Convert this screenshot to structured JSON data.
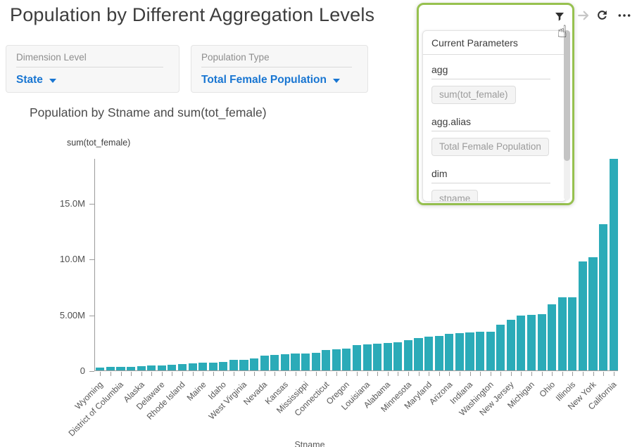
{
  "page": {
    "title": "Population by Different Aggregation Levels"
  },
  "filters": [
    {
      "label": "Dimension Level",
      "value": "State",
      "icon": "caret-down-icon"
    },
    {
      "label": "Population Type",
      "value": "Total Female Population",
      "icon": "caret-down-icon"
    }
  ],
  "toolbar": {
    "icons": [
      "funnel-icon",
      "arrow-right-icon",
      "refresh-icon",
      "ellipsis-icon"
    ]
  },
  "cursor": {
    "icon": "hand-pointer-icon",
    "glyph": "☝"
  },
  "parameters_popup": {
    "title": "Current Parameters",
    "fields": [
      {
        "name": "agg",
        "value": "sum(tot_female)"
      },
      {
        "name": "agg.alias",
        "value": "Total Female Population"
      },
      {
        "name": "dim",
        "value": "stname"
      }
    ]
  },
  "chart": {
    "title": "Population by Stname and sum(tot_female)",
    "y_axis_label": "sum(tot_female)",
    "x_axis_label": "Stname"
  },
  "chart_data": {
    "type": "bar",
    "title": "Population by Stname and sum(tot_female)",
    "xlabel": "Stname",
    "ylabel": "sum(tot_female)",
    "ylim": [
      0,
      19000000
    ],
    "grid": false,
    "legend": "none",
    "bar_color": "#2babb8",
    "sort": "ascending",
    "x_label_rotation": -45,
    "x_labels_every_other_bar": true,
    "y_ticks": [
      {
        "value": 0,
        "label": "0"
      },
      {
        "value": 5000000,
        "label": "5.00M"
      },
      {
        "value": 10000000,
        "label": "10.0M"
      },
      {
        "value": 15000000,
        "label": "15.0M"
      }
    ],
    "bars": [
      {
        "label": "Wyoming",
        "value": 280000
      },
      {
        "label": "",
        "value": 310000
      },
      {
        "label": "District of Columbia",
        "value": 320000
      },
      {
        "label": "",
        "value": 335000
      },
      {
        "label": "Alaska",
        "value": 350000
      },
      {
        "label": "",
        "value": 410000
      },
      {
        "label": "Delaware",
        "value": 460000
      },
      {
        "label": "",
        "value": 500000
      },
      {
        "label": "Rhode Island",
        "value": 550000
      },
      {
        "label": "",
        "value": 660000
      },
      {
        "label": "Maine",
        "value": 680000
      },
      {
        "label": "",
        "value": 690000
      },
      {
        "label": "Idaho",
        "value": 780000
      },
      {
        "label": "",
        "value": 920000
      },
      {
        "label": "West Virginia",
        "value": 950000
      },
      {
        "label": "",
        "value": 1050000
      },
      {
        "label": "Nevada",
        "value": 1330000
      },
      {
        "label": "",
        "value": 1360000
      },
      {
        "label": "Kansas",
        "value": 1430000
      },
      {
        "label": "",
        "value": 1490000
      },
      {
        "label": "Mississippi",
        "value": 1530000
      },
      {
        "label": "",
        "value": 1550000
      },
      {
        "label": "Connecticut",
        "value": 1840000
      },
      {
        "label": "",
        "value": 1900000
      },
      {
        "label": "Oregon",
        "value": 1950000
      },
      {
        "label": "",
        "value": 2250000
      },
      {
        "label": "Louisiana",
        "value": 2350000
      },
      {
        "label": "",
        "value": 2410000
      },
      {
        "label": "Alabama",
        "value": 2480000
      },
      {
        "label": "",
        "value": 2540000
      },
      {
        "label": "Minnesota",
        "value": 2700000
      },
      {
        "label": "",
        "value": 2900000
      },
      {
        "label": "Maryland",
        "value": 3000000
      },
      {
        "label": "",
        "value": 3100000
      },
      {
        "label": "Arizona",
        "value": 3280000
      },
      {
        "label": "",
        "value": 3330000
      },
      {
        "label": "Indiana",
        "value": 3370000
      },
      {
        "label": "",
        "value": 3440000
      },
      {
        "label": "Washington",
        "value": 3460000
      },
      {
        "label": "",
        "value": 4100000
      },
      {
        "label": "New Jersey",
        "value": 4520000
      },
      {
        "label": "",
        "value": 4900000
      },
      {
        "label": "Michigan",
        "value": 4980000
      },
      {
        "label": "",
        "value": 5050000
      },
      {
        "label": "Ohio",
        "value": 5900000
      },
      {
        "label": "",
        "value": 6520000
      },
      {
        "label": "Illinois",
        "value": 6560000
      },
      {
        "label": "",
        "value": 9750000
      },
      {
        "label": "New York",
        "value": 10100000
      },
      {
        "label": "",
        "value": 13100000
      },
      {
        "label": "California",
        "value": 18950000
      }
    ]
  },
  "colors": {
    "bar": "#2babb8",
    "popup_border": "#97c14f",
    "link_blue": "#1976d2",
    "axis": "#9b9b9b",
    "chip_bg": "#f4f4f4",
    "chip_text": "#9b9b9b"
  }
}
